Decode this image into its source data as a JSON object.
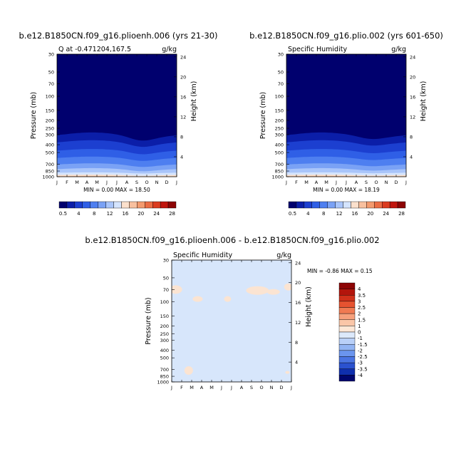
{
  "panels": [
    {
      "title": "b.e12.B1850CN.f09_g16.plioenh.006 (yrs 21-30)",
      "left_label": "Q at -0.471204,167.5",
      "right_label": "g/kg",
      "ylabel": "Pressure (mb)",
      "y2label": "Height (km)",
      "min_max": "MIN =    0.00  MAX =   18.50"
    },
    {
      "title": "b.e12.B1850CN.f09_g16.plio.002 (yrs 601-650)",
      "left_label": "Specific Humidity",
      "right_label": "g/kg",
      "ylabel": "Pressure (mb)",
      "y2label": "Height (km)",
      "min_max": "MIN =    0.00  MAX =   18.19"
    },
    {
      "title": "b.e12.B1850CN.f09_g16.plioenh.006 - b.e12.B1850CN.f09_g16.plio.002",
      "left_label": "Specific Humidity",
      "right_label": "g/kg",
      "ylabel": "Pressure (mb)",
      "y2label": "Height (km)",
      "min_max": "MIN =   -0.86  MAX =    0.15"
    }
  ],
  "chart_data": [
    {
      "type": "heatmap",
      "title": "b.e12.B1850CN.f09_g16.plioenh.006 (yrs 21-30)",
      "x_ticks": [
        "J",
        "F",
        "M",
        "A",
        "M",
        "J",
        "J",
        "A",
        "S",
        "O",
        "N",
        "D",
        "J"
      ],
      "y_ticks": [
        30,
        50,
        70,
        100,
        150,
        200,
        250,
        300,
        400,
        500,
        700,
        850,
        1000
      ],
      "y2_ticks": [
        4,
        8,
        12,
        16,
        20,
        24
      ],
      "ylabel": "Pressure (mb)",
      "y2label": "Height (km)",
      "units": "g/kg",
      "min": 0.0,
      "max": 18.5,
      "colorbar_levels": [
        0.5,
        4,
        8,
        12,
        16,
        20,
        24,
        28
      ],
      "colors": [
        "#00006e",
        "#0b1ea8",
        "#1c3fd0",
        "#2f5fe6",
        "#4e7ff0",
        "#7aa2f5",
        "#a9c5fa",
        "#d4e4fd",
        "#fbe0cc",
        "#f8c09f",
        "#f39a6e",
        "#ea6c43",
        "#db3b1f",
        "#c0150d",
        "#8d0404"
      ]
    },
    {
      "type": "heatmap",
      "title": "b.e12.B1850CN.f09_g16.plio.002 (yrs 601-650)",
      "x_ticks": [
        "J",
        "F",
        "M",
        "A",
        "M",
        "J",
        "J",
        "A",
        "S",
        "O",
        "N",
        "D",
        "J"
      ],
      "y_ticks": [
        30,
        50,
        70,
        100,
        150,
        200,
        250,
        300,
        400,
        500,
        700,
        850,
        1000
      ],
      "y2_ticks": [
        4,
        8,
        12,
        16,
        20,
        24
      ],
      "ylabel": "Pressure (mb)",
      "y2label": "Height (km)",
      "units": "g/kg",
      "min": 0.0,
      "max": 18.19,
      "colorbar_levels": [
        0.5,
        4,
        8,
        12,
        16,
        20,
        24,
        28
      ]
    },
    {
      "type": "heatmap",
      "title": "b.e12.B1850CN.f09_g16.plioenh.006 - b.e12.B1850CN.f09_g16.plio.002",
      "x_ticks": [
        "J",
        "F",
        "M",
        "A",
        "M",
        "J",
        "J",
        "A",
        "S",
        "O",
        "N",
        "D",
        "J"
      ],
      "y_ticks": [
        30,
        50,
        70,
        100,
        150,
        200,
        250,
        300,
        400,
        500,
        700,
        850,
        1000
      ],
      "y2_ticks": [
        4,
        8,
        12,
        16,
        20,
        24
      ],
      "ylabel": "Pressure (mb)",
      "y2label": "Height (km)",
      "units": "g/kg",
      "min": -0.86,
      "max": 0.15,
      "colorbar_levels": [
        "4",
        "3.5",
        "3",
        "2.5",
        "2",
        "1.5",
        "1",
        "0",
        "-1",
        "-1.5",
        "-2",
        "-2.5",
        "-3",
        "-3.5",
        "-4"
      ],
      "colors": [
        "#8d0404",
        "#b3150c",
        "#d0301a",
        "#e65330",
        "#f07a52",
        "#f6a07c",
        "#fac6a8",
        "#fde7d6",
        "#dce9fb",
        "#b9d0f8",
        "#92b4f3",
        "#6b95ee",
        "#4a74e2",
        "#2b52cf",
        "#0f2fae",
        "#00066e"
      ]
    }
  ]
}
